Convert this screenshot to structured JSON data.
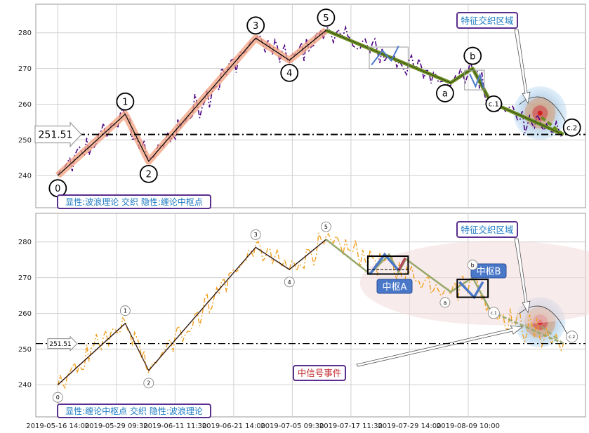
{
  "chart_data": [
    {
      "type": "line",
      "title": "",
      "ylim": [
        231,
        288
      ],
      "yticks": [
        240,
        250,
        260,
        270,
        280
      ],
      "grid": true,
      "legend_box": "显性:波浪理论 交织 隐性:缠论中枢点",
      "level_label": "251.51",
      "level_value": 251.51,
      "annotation": "特征交织区域",
      "wave_points": [
        {
          "label": "0",
          "x": 0.0,
          "y": 240.0
        },
        {
          "label": "1",
          "x": 9.2,
          "y": 257.2
        },
        {
          "label": "2",
          "x": 12.4,
          "y": 244.0
        },
        {
          "label": "3",
          "x": 27.0,
          "y": 278.5
        },
        {
          "label": "4",
          "x": 31.6,
          "y": 272.3
        },
        {
          "label": "5",
          "x": 36.6,
          "y": 280.7
        },
        {
          "label": "a",
          "x": 53.6,
          "y": 266.0
        },
        {
          "label": "b",
          "x": 56.6,
          "y": 270.0
        },
        {
          "label": "c.1",
          "x": 59.1,
          "y": 260.5
        },
        {
          "label": "c.2",
          "x": 69.0,
          "y": 251.5
        }
      ]
    },
    {
      "type": "line",
      "title": "",
      "ylim": [
        231,
        288
      ],
      "yticks": [
        240,
        250,
        260,
        270,
        280
      ],
      "grid": true,
      "legend_box": "显性:缠论中枢点 交织 隐性:波浪理论",
      "level_label": "251.51",
      "level_value": 251.51,
      "annotation": "特征交织区域",
      "signal_label": "中信号事件",
      "pivot_a": "中枢A",
      "pivot_b": "中枢B",
      "wave_points": [
        {
          "label": "0",
          "x": 0.0,
          "y": 240.0
        },
        {
          "label": "1",
          "x": 9.2,
          "y": 257.2
        },
        {
          "label": "2",
          "x": 12.4,
          "y": 244.0
        },
        {
          "label": "3",
          "x": 27.0,
          "y": 278.5
        },
        {
          "label": "4",
          "x": 31.6,
          "y": 272.3
        },
        {
          "label": "5",
          "x": 36.6,
          "y": 280.7
        },
        {
          "label": "a",
          "x": 53.6,
          "y": 266.0
        },
        {
          "label": "b",
          "x": 56.6,
          "y": 270.0
        },
        {
          "label": "c.1",
          "x": 59.1,
          "y": 260.5
        },
        {
          "label": "c.2",
          "x": 69.0,
          "y": 251.5
        }
      ]
    }
  ],
  "x_axis": {
    "tick_labels": [
      "2019-05-16 14:00",
      "2019-05-29 09:30",
      "2019-06-11 11:30",
      "2019-06-21 14:00",
      "2019-07-05 09:30",
      "2019-07-17 11:30",
      "2019-07-29 14:00",
      "2019-08-09 10:00"
    ],
    "tick_x": [
      0,
      8,
      16,
      24,
      32,
      40,
      48,
      56
    ],
    "xlim": [
      -3,
      72
    ]
  },
  "colors": {
    "price_top": "#4b0082",
    "price_bottom": "#f0a020",
    "wave_band": "#f2a07f",
    "wave_c": "#6b8e23",
    "pivot_blue": "#4a78c8",
    "box_purple": "#5b2d8e",
    "box_text": "#1a78c2",
    "ellipse": "#f3dada"
  }
}
